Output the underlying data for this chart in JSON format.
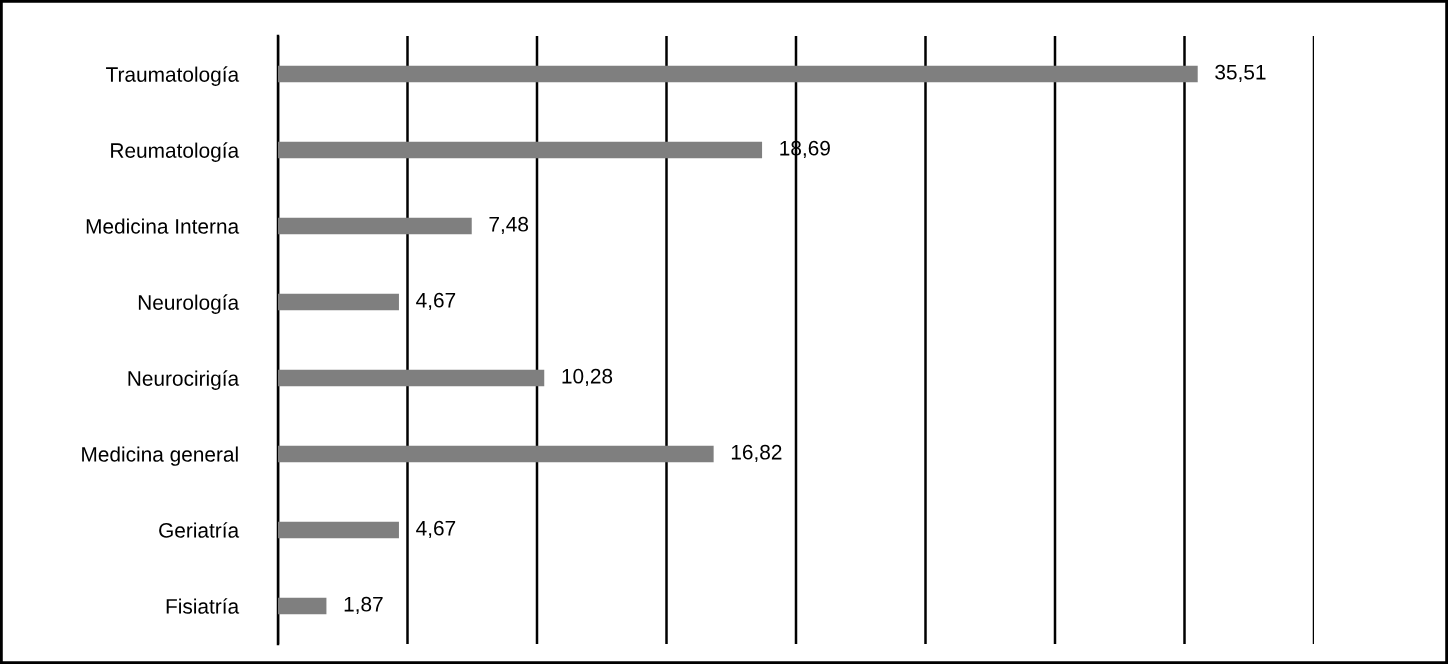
{
  "chart_data": {
    "type": "bar",
    "orientation": "horizontal",
    "categories": [
      "Traumatología",
      "Reumatología",
      "Medicina Interna",
      "Neurología",
      "Neurocirigía",
      "Medicina general",
      "Geriatría",
      "Fisiatría"
    ],
    "values": [
      35.51,
      18.69,
      7.48,
      4.67,
      10.28,
      16.82,
      4.67,
      1.87
    ],
    "value_labels": [
      "35,51",
      "18,69",
      "7,48",
      "4,67",
      "10,28",
      "16,82",
      "4,67",
      "1,87"
    ],
    "color": "#7f7f7f",
    "xlim": [
      0,
      40
    ],
    "xticks": [
      {
        "value": 0,
        "label": null
      },
      {
        "value": 5,
        "label": null
      },
      {
        "value": 10,
        "label": null
      },
      {
        "value": 15,
        "label": null
      },
      {
        "value": 20,
        "label": null
      },
      {
        "value": 25,
        "label": null
      },
      {
        "value": 30,
        "label": null
      },
      {
        "value": 35,
        "label": null
      },
      {
        "value": 40,
        "label": null
      }
    ],
    "grid": "x",
    "tick_labels": "y",
    "legend": false
  }
}
